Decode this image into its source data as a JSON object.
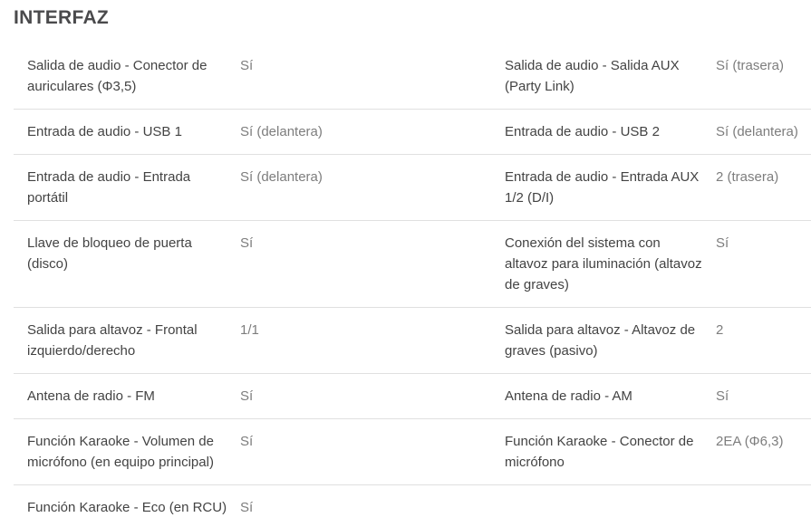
{
  "section": {
    "title": "INTERFAZ"
  },
  "colors": {
    "title_text": "#4a4a4c",
    "label_text": "#434343",
    "value_text": "#7d7d7d",
    "divider": "#e0e0e0",
    "background": "#ffffff"
  },
  "table": {
    "rows": [
      {
        "left": {
          "label": "Salida de audio - Conector de auriculares (Φ3,5)",
          "value": "Sí"
        },
        "right": {
          "label": "Salida de audio - Salida AUX (Party Link)",
          "value": "Sí (trasera)"
        }
      },
      {
        "left": {
          "label": "Entrada de audio - USB 1",
          "value": "Sí (delantera)"
        },
        "right": {
          "label": "Entrada de audio - USB 2",
          "value": "Sí (delantera)"
        }
      },
      {
        "left": {
          "label": "Entrada de audio - Entrada portátil",
          "value": "Sí (delantera)"
        },
        "right": {
          "label": "Entrada de audio - Entrada AUX 1/2 (D/I)",
          "value": "2 (trasera)"
        }
      },
      {
        "left": {
          "label": "Llave de bloqueo de puerta (disco)",
          "value": "Sí"
        },
        "right": {
          "label": "Conexión del sistema con altavoz para iluminación (altavoz de graves)",
          "value": "Sí"
        }
      },
      {
        "left": {
          "label": "Salida para altavoz - Frontal izquierdo/derecho",
          "value": "1/1"
        },
        "right": {
          "label": "Salida para altavoz - Altavoz de graves (pasivo)",
          "value": "2"
        }
      },
      {
        "left": {
          "label": "Antena de radio - FM",
          "value": "Sí"
        },
        "right": {
          "label": "Antena de radio - AM",
          "value": "Sí"
        }
      },
      {
        "left": {
          "label": "Función Karaoke - Volumen de micrófono (en equipo principal)",
          "value": "Sí"
        },
        "right": {
          "label": "Función Karaoke - Conector de micrófono",
          "value": "2EA (Φ6,3)"
        }
      },
      {
        "left": {
          "label": "Función Karaoke - Eco (en RCU)",
          "value": "Sí"
        },
        "right": {
          "label": "",
          "value": ""
        }
      }
    ]
  }
}
